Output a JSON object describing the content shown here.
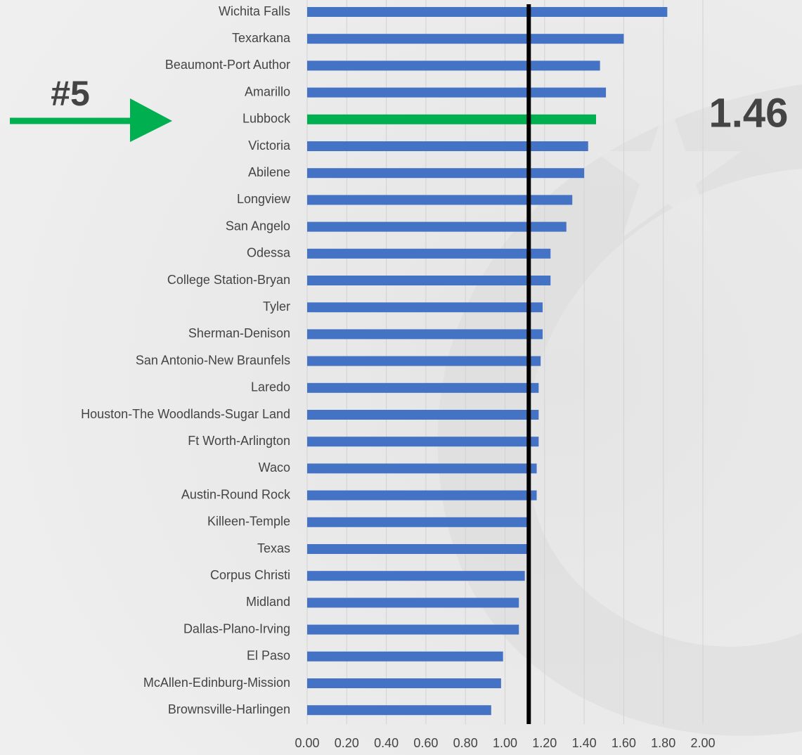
{
  "chart_data": {
    "type": "hbar",
    "categories": [
      "Wichita Falls",
      "Texarkana",
      "Beaumont-Port Author",
      "Amarillo",
      "Lubbock",
      "Victoria",
      "Abilene",
      "Longview",
      "San Angelo",
      "Odessa",
      "College Station-Bryan",
      "Tyler",
      "Sherman-Denison",
      "San Antonio-New Braunfels",
      "Laredo",
      "Houston-The Woodlands-Sugar Land",
      "Ft Worth-Arlington",
      "Waco",
      "Austin-Round Rock",
      "Killeen-Temple",
      "Texas",
      "Corpus Christi",
      "Midland",
      "Dallas-Plano-Irving",
      "El Paso",
      "McAllen-Edinburg-Mission",
      "Brownsville-Harlingen"
    ],
    "values": [
      1.82,
      1.6,
      1.48,
      1.51,
      1.46,
      1.42,
      1.4,
      1.34,
      1.31,
      1.23,
      1.23,
      1.19,
      1.19,
      1.18,
      1.17,
      1.17,
      1.17,
      1.16,
      1.16,
      1.11,
      1.12,
      1.1,
      1.07,
      1.07,
      0.99,
      0.98,
      0.93
    ],
    "colors": [
      "#4472c4",
      "#4472c4",
      "#4472c4",
      "#4472c4",
      "#00b050",
      "#4472c4",
      "#4472c4",
      "#4472c4",
      "#4472c4",
      "#4472c4",
      "#4472c4",
      "#4472c4",
      "#4472c4",
      "#4472c4",
      "#4472c4",
      "#4472c4",
      "#4472c4",
      "#4472c4",
      "#4472c4",
      "#4472c4",
      "#4472c4",
      "#4472c4",
      "#4472c4",
      "#4472c4",
      "#4472c4",
      "#4472c4",
      "#4472c4"
    ],
    "reference_line_color": "#000000",
    "xlim": [
      0,
      2
    ],
    "xticks": [
      {
        "value": 0,
        "label": "0.00"
      },
      {
        "value": 0.2,
        "label": "0.20"
      },
      {
        "value": 0.4,
        "label": "0.40"
      },
      {
        "value": 0.6,
        "label": "0.60"
      },
      {
        "value": 0.8,
        "label": "0.80"
      },
      {
        "value": 1,
        "label": "1.00"
      },
      {
        "value": 1.2,
        "label": "1.20"
      },
      {
        "value": 1.4,
        "label": "1.40"
      },
      {
        "value": 1.6,
        "label": "1.60"
      },
      {
        "value": 1.8,
        "label": "1.80"
      },
      {
        "value": 2,
        "label": "2.00"
      }
    ],
    "grid": true,
    "annotations": [
      {
        "text": "#5",
        "color": "#000000"
      },
      {
        "text": "1.46",
        "color": "#000000"
      }
    ],
    "arrow_color": "#00b050"
  }
}
